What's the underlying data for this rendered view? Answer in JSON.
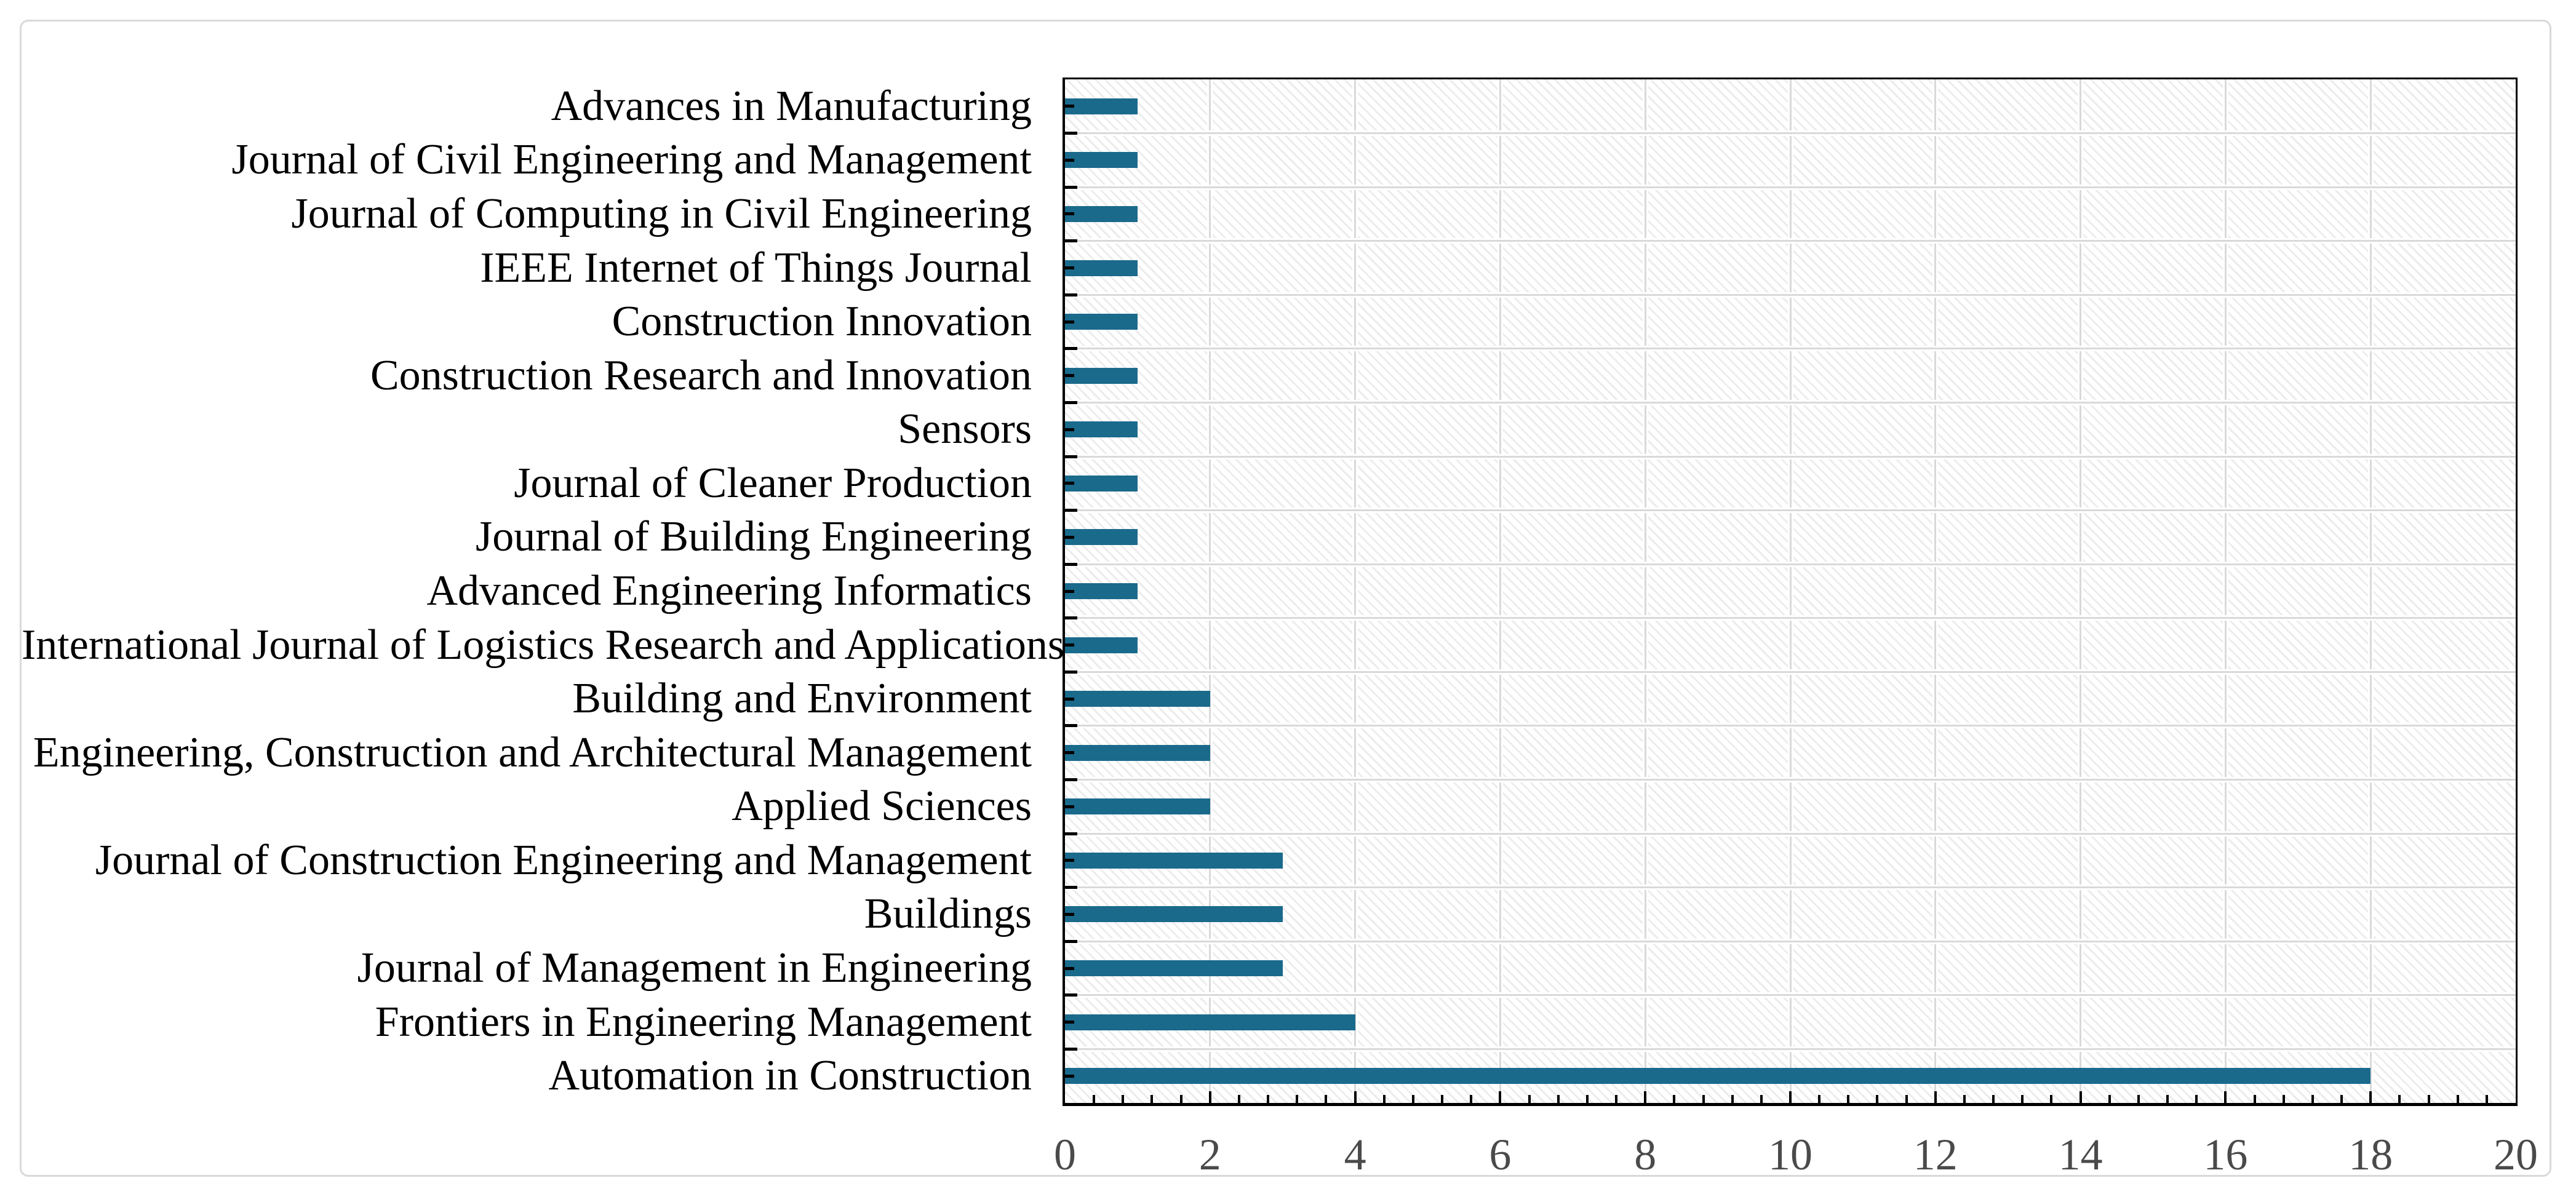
{
  "figure": {
    "description": "Horizontal bar chart of number of publications per journal",
    "background_color": "#ffffff",
    "frame_border_color": "#d9d9d9"
  },
  "chart_data": {
    "type": "bar",
    "orientation": "horizontal",
    "title": "",
    "xlabel": "",
    "ylabel": "",
    "legend": "none",
    "grid": "on",
    "categories": [
      "Advances in Manufacturing",
      "Journal of Civil Engineering and Management",
      "Journal of Computing in Civil Engineering",
      "IEEE Internet of Things Journal",
      "Construction Innovation",
      "Construction Research and Innovation",
      "Sensors",
      "Journal of Cleaner Production",
      "Journal of Building Engineering",
      "Advanced Engineering Informatics",
      "International Journal of Logistics Research and Applications",
      "Building and Environment",
      "Engineering, Construction and Architectural Management",
      "Applied Sciences",
      "Journal of Construction Engineering and Management",
      "Buildings",
      "Journal of Management in Engineering",
      "Frontiers in Engineering Management",
      "Automation in Construction"
    ],
    "values": [
      1,
      1,
      1,
      1,
      1,
      1,
      1,
      1,
      1,
      1,
      1,
      2,
      2,
      2,
      3,
      3,
      3,
      4,
      18
    ],
    "xlim": [
      0,
      20
    ],
    "x_tick_labels": [
      "0",
      "2",
      "4",
      "6",
      "8",
      "10",
      "12",
      "14",
      "16",
      "18",
      "20"
    ],
    "x_major_tick_step": 2,
    "x_minor_tick_step": 0.4,
    "bar_color": "#1a6a8c",
    "gridline_color": "#d9d9d9",
    "hatch_line_color": "#ececec",
    "axis_color": "#000000",
    "x_tick_label_color": "#4a4a4a",
    "y_tick_label_color": "#000000"
  }
}
